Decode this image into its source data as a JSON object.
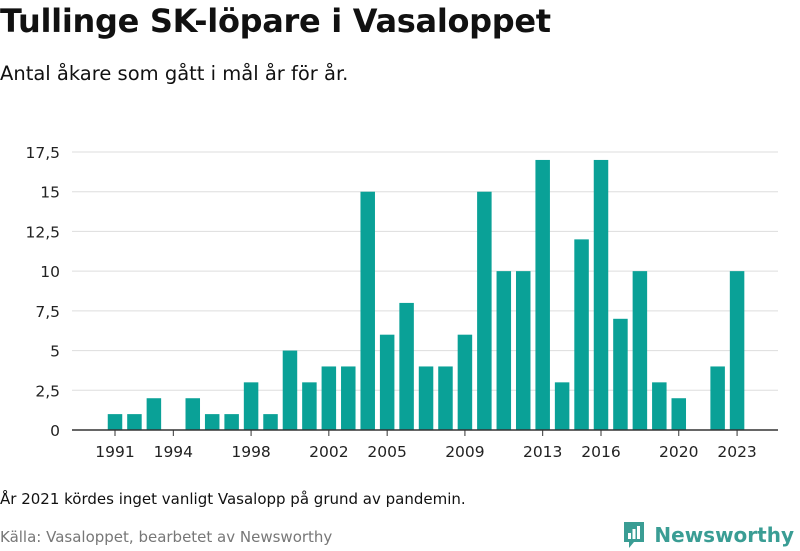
{
  "title": "Tullinge SK-löpare i Vasaloppet",
  "subtitle": "Antal åkare som gått i mål år för år.",
  "note": "År 2021 kördes inget vanligt Vasalopp på grund av pandemin.",
  "source": "Källa: Vasaloppet, bearbetet av Newsworthy",
  "brand": {
    "name": "Newsworthy",
    "icon": "newsworthy-logo-icon",
    "color": "#3a9d94"
  },
  "colors": {
    "bar": "#0aa197",
    "grid": "#dddddd",
    "axis": "#333333"
  },
  "chart_data": {
    "type": "bar",
    "categories": [
      "1991",
      "1992",
      "1993",
      "1994",
      "1995",
      "1996",
      "1997",
      "1998",
      "1999",
      "2000",
      "2001",
      "2002",
      "2003",
      "2004",
      "2005",
      "2006",
      "2007",
      "2008",
      "2009",
      "2010",
      "2011",
      "2012",
      "2013",
      "2014",
      "2015",
      "2016",
      "2017",
      "2018",
      "2019",
      "2020",
      "2021",
      "2022",
      "2023"
    ],
    "values": [
      1,
      1,
      2,
      0,
      2,
      1,
      1,
      3,
      1,
      5,
      3,
      4,
      4,
      15,
      6,
      8,
      4,
      4,
      6,
      15,
      10,
      10,
      17,
      3,
      12,
      17,
      7,
      10,
      3,
      2,
      0,
      4,
      10
    ],
    "x_tick_labels": [
      "1991",
      "1994",
      "1998",
      "2002",
      "2005",
      "2009",
      "2013",
      "2016",
      "2020",
      "2023"
    ],
    "y_ticks": [
      0,
      2.5,
      5,
      7.5,
      10,
      12.5,
      15,
      17.5
    ],
    "y_tick_labels": [
      "0",
      "2,5",
      "5",
      "7,5",
      "10",
      "12,5",
      "15",
      "17,5"
    ],
    "ylim": [
      0,
      17.5
    ],
    "grid": true,
    "legend": "none"
  }
}
